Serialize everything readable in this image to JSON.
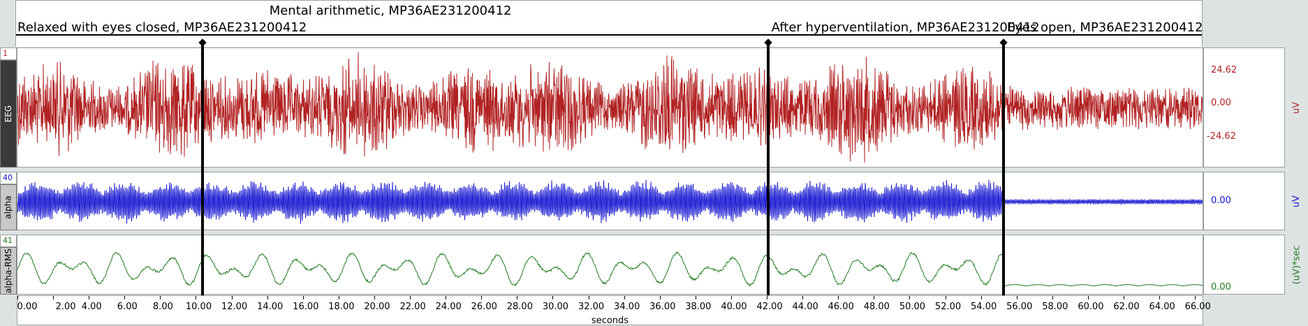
{
  "events": [
    {
      "label": "Relaxed with eyes closed, MP36AE231200412",
      "row": 2,
      "t": 0.0
    },
    {
      "label": "Mental arithmetic, MP36AE231200412",
      "row": 1,
      "t": 10.4
    },
    {
      "label": "After hyperventilation, MP36AE231200412",
      "row": 2,
      "t": 42.1
    },
    {
      "label": "Eyes open, MP36AE231200412",
      "row": 2,
      "t": 55.3
    }
  ],
  "channels": [
    {
      "id": "eeg",
      "number": "1",
      "label": "EEG",
      "unit": "uV",
      "color": "#b22222",
      "scale_ticks": [
        "24.62",
        "0.00",
        "-24.62"
      ],
      "label_bg": "#3a3a3a",
      "label_color": "#ffffff"
    },
    {
      "id": "alpha",
      "number": "40",
      "label": "alpha",
      "unit": "uV",
      "color": "#1010d0",
      "scale_ticks": [
        "0.00"
      ],
      "label_bg": "#c8c8c8",
      "label_color": "#000000"
    },
    {
      "id": "alpha_rms",
      "number": "41",
      "label": "alpha-RMS",
      "unit": "(uV)*sec",
      "color": "#1f7a1f",
      "scale_ticks": [
        "0.00"
      ],
      "label_bg": "#c8c8c8",
      "label_color": "#000000"
    }
  ],
  "time_axis": {
    "label": "seconds",
    "ticks": [
      "0.00",
      "2.00",
      "4.00",
      "6.00",
      "8.00",
      "10.00",
      "12.00",
      "14.00",
      "16.00",
      "18.00",
      "20.00",
      "22.00",
      "24.00",
      "26.00",
      "28.00",
      "30.00",
      "32.00",
      "34.00",
      "36.00",
      "38.00",
      "40.00",
      "42.00",
      "44.00",
      "46.00",
      "48.00",
      "50.00",
      "52.00",
      "54.00",
      "56.00",
      "58.00",
      "60.00",
      "62.00",
      "64.00",
      "66.00"
    ],
    "range": [
      0,
      66.5
    ]
  },
  "markers_t": [
    10.4,
    42.1,
    55.3
  ]
}
